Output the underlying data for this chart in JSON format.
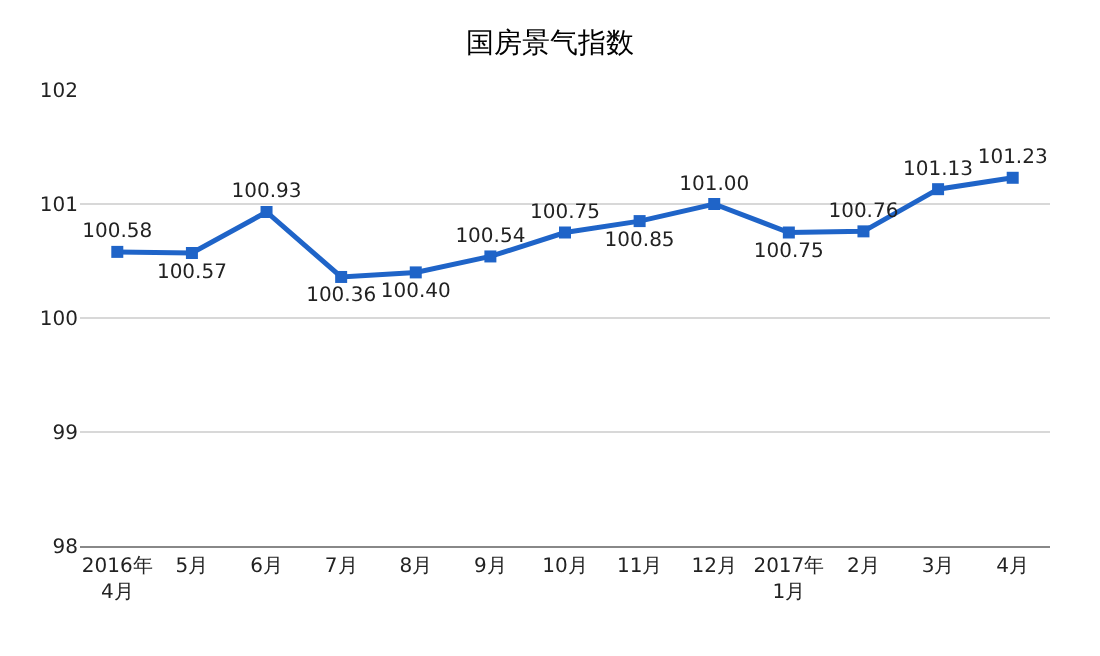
{
  "chart_data": {
    "type": "line",
    "title": "国房景气指数",
    "categories": [
      "2016年\n4月",
      "5月",
      "6月",
      "7月",
      "8月",
      "9月",
      "10月",
      "11月",
      "12月",
      "2017年\n1月",
      "2月",
      "3月",
      "4月"
    ],
    "series": [
      {
        "color": "#1f64c8",
        "values": [
          100.58,
          100.57,
          100.93,
          100.36,
          100.4,
          100.54,
          100.75,
          100.85,
          101.0,
          100.75,
          100.76,
          101.13,
          101.23
        ],
        "value_labels": [
          "100.58",
          "100.57",
          "100.93",
          "100.36",
          "100.40",
          "100.54",
          "100.75",
          "100.85",
          "101.00",
          "100.75",
          "100.76",
          "101.13",
          "101.23"
        ]
      }
    ],
    "ylim": [
      98,
      102
    ],
    "yticks": [
      98,
      99,
      100,
      101,
      102
    ],
    "grid": "y",
    "legend": false,
    "marker": "square",
    "line_style": "solid"
  }
}
